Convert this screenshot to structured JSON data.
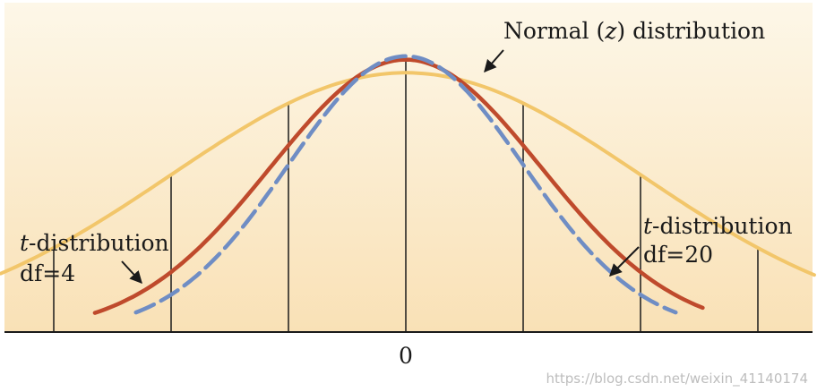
{
  "chart_data": {
    "type": "line",
    "xlim": [
      -3.5,
      3.5
    ],
    "x_ticks": [
      -3,
      -2,
      -1,
      0,
      1,
      2,
      3
    ],
    "x_tick_labels": [
      "",
      "",
      "",
      "0",
      "",
      "",
      ""
    ],
    "series": [
      {
        "key": "normal",
        "style": "dashed",
        "color": "#6f8dc4",
        "peak": 0.399
      },
      {
        "key": "t20",
        "style": "solid",
        "color": "#bf4a2c",
        "peak": 0.394
      },
      {
        "key": "t4",
        "style": "solid",
        "color": "#f2c66a",
        "peak": 0.375
      }
    ],
    "annotations": {
      "normal": {
        "name": "Normal",
        "var": "z",
        "tail": "distribution"
      },
      "t20": {
        "italic": "t",
        "rest": "-distribution",
        "df": "df=20"
      },
      "t4": {
        "italic": "t",
        "rest": "-distribution",
        "df": "df=4"
      }
    },
    "grid": false,
    "legend": "none"
  },
  "colors": {
    "background_top": "#fdf7e8",
    "background_bottom": "#f9e1b6",
    "axis": "#1a1a1a"
  },
  "watermark": "https://blog.csdn.net/weixin_41140174"
}
